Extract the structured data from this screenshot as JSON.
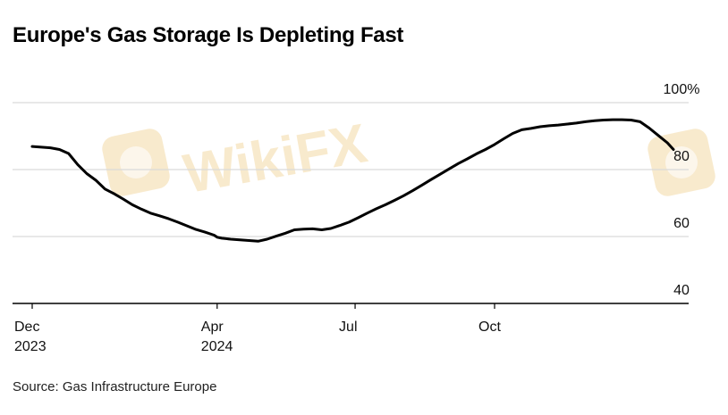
{
  "title": "Europe's Gas Storage Is Depleting Fast",
  "source": "Source: Gas Infrastructure Europe",
  "watermark": {
    "text": "WikiFX",
    "color": "#f3d9a6"
  },
  "chart_data": {
    "type": "line",
    "title": "Europe's Gas Storage Is Depleting Fast",
    "xlabel": "",
    "ylabel": "",
    "ylim": [
      40,
      100
    ],
    "xlim": [
      "2023-11-27",
      "2025-02-07"
    ],
    "y_ticks": [
      {
        "value": 100,
        "label": "100%"
      },
      {
        "value": 80,
        "label": "80"
      },
      {
        "value": 60,
        "label": "60"
      },
      {
        "value": 40,
        "label": "40"
      }
    ],
    "x_ticks": [
      {
        "date": "2023-12-01",
        "label": "Dec",
        "sublabel": "2023"
      },
      {
        "date": "2024-04-01",
        "label": "Apr",
        "sublabel": "2024"
      },
      {
        "date": "2024-07-01",
        "label": "Jul",
        "sublabel": ""
      },
      {
        "date": "2024-10-01",
        "label": "Oct",
        "sublabel": ""
      }
    ],
    "grid": "horizontal",
    "line_color": "#000000",
    "grid_color": "#d9d9d9",
    "series": [
      {
        "x": [
          "2023-12-01",
          "2023-12-07",
          "2023-12-13",
          "2023-12-19",
          "2023-12-25",
          "2023-12-31",
          "2024-01-06",
          "2024-01-12",
          "2024-01-18",
          "2024-01-24",
          "2024-01-30",
          "2024-02-05",
          "2024-02-11",
          "2024-02-17",
          "2024-02-23",
          "2024-02-29",
          "2024-03-06",
          "2024-03-12",
          "2024-03-18",
          "2024-03-24",
          "2024-03-30",
          "2024-04-01",
          "2024-04-04",
          "2024-04-10",
          "2024-04-16",
          "2024-04-22",
          "2024-04-28",
          "2024-05-04",
          "2024-05-10",
          "2024-05-16",
          "2024-05-22",
          "2024-05-28",
          "2024-06-03",
          "2024-06-09",
          "2024-06-15",
          "2024-06-21",
          "2024-06-27",
          "2024-07-03",
          "2024-07-09",
          "2024-07-15",
          "2024-07-21",
          "2024-07-27",
          "2024-08-02",
          "2024-08-08",
          "2024-08-14",
          "2024-08-20",
          "2024-08-26",
          "2024-09-01",
          "2024-09-07",
          "2024-09-13",
          "2024-09-19",
          "2024-09-25",
          "2024-10-01",
          "2024-10-07",
          "2024-10-13",
          "2024-10-19",
          "2024-10-25",
          "2024-10-31",
          "2024-11-06",
          "2024-11-12",
          "2024-11-18",
          "2024-11-24",
          "2024-11-30",
          "2024-12-06",
          "2024-12-12",
          "2024-12-18",
          "2024-12-24",
          "2024-12-30",
          "2025-01-05",
          "2025-01-11",
          "2025-01-17",
          "2025-01-23",
          "2025-01-27"
        ],
        "values": [
          86.9,
          86.7,
          86.5,
          86.0,
          84.8,
          81.5,
          78.8,
          76.8,
          74.2,
          72.8,
          71.2,
          69.5,
          68.2,
          67.0,
          66.2,
          65.3,
          64.3,
          63.2,
          62.1,
          61.3,
          60.4,
          59.8,
          59.5,
          59.2,
          59.0,
          58.8,
          58.6,
          59.2,
          60.1,
          61.0,
          62.0,
          62.2,
          62.3,
          62.0,
          62.4,
          63.3,
          64.3,
          65.6,
          67.0,
          68.3,
          69.5,
          70.8,
          72.2,
          73.7,
          75.3,
          77.0,
          78.6,
          80.2,
          81.8,
          83.2,
          84.7,
          86.0,
          87.5,
          89.2,
          90.8,
          91.9,
          92.3,
          92.8,
          93.1,
          93.3,
          93.6,
          93.9,
          94.3,
          94.6,
          94.8,
          94.9,
          94.9,
          94.8,
          94.3,
          92.4,
          90.2,
          88.0,
          86.0
        ]
      }
    ]
  }
}
